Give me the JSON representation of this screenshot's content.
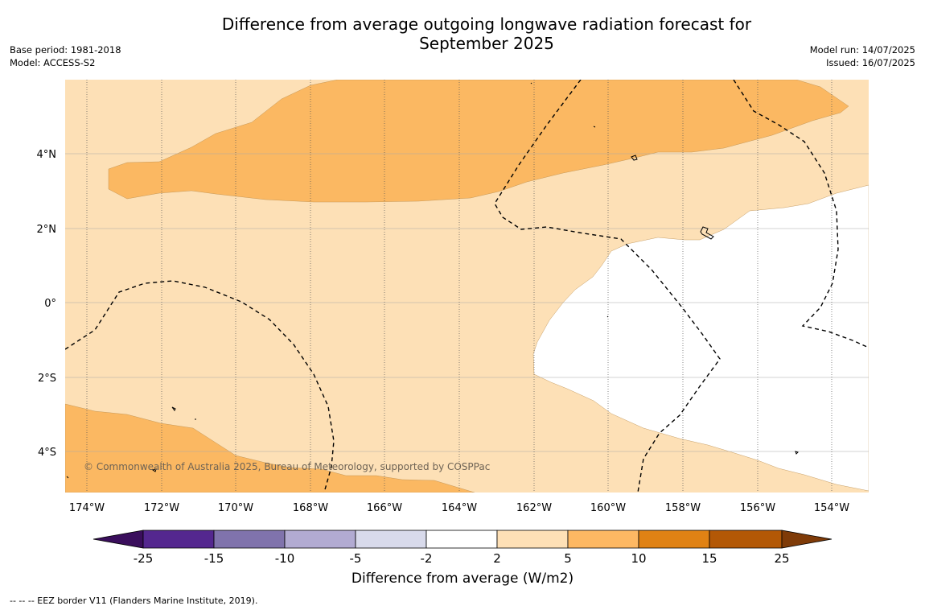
{
  "title": "Difference from average outgoing longwave radiation forecast for September 2025",
  "info_left": {
    "base_period": "Base period: 1981-2018",
    "model": "Model: ACCESS-S2"
  },
  "info_right": {
    "model_run": "Model run: 14/07/2025",
    "issued": "Issued: 16/07/2025"
  },
  "map": {
    "lat_labels": [
      "4°N",
      "2°N",
      "0°",
      "2°S",
      "4°S"
    ],
    "lon_labels": [
      "174°W",
      "172°W",
      "170°W",
      "168°W",
      "166°W",
      "164°W",
      "162°W",
      "160°W",
      "158°W",
      "156°W",
      "154°W"
    ],
    "copyright": "© Commonwealth of Australia 2025, Bureau of Meteorology, supported by COSPPac",
    "field_colors": {
      "2 to 5": "#fde0b6",
      "5 to 10": "#fbb862",
      "-2 to 2": "#ffffff"
    }
  },
  "colorbar": {
    "tick_labels": [
      "-25",
      "-15",
      "-10",
      "-5",
      "-2",
      "2",
      "5",
      "10",
      "15",
      "25"
    ],
    "colors": [
      "#3a0e5c",
      "#54278f",
      "#8073ac",
      "#b2abd2",
      "#d8daeb",
      "#ffffff",
      "#fee0b6",
      "#fdb863",
      "#e08214",
      "#b35806",
      "#7f3b08"
    ],
    "label": "Difference from average (W/m2)"
  },
  "footnote": "--  --  -- EEZ border V11 (Flanders Marine Institute, 2019)."
}
